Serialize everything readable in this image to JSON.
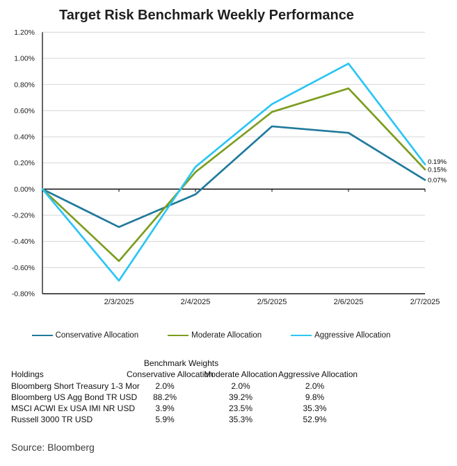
{
  "title": "Target Risk Benchmark Weekly Performance",
  "source": "Source: Bloomberg",
  "chart_data": {
    "type": "line",
    "x_labels": [
      "",
      "2/3/2025",
      "2/4/2025",
      "2/5/2025",
      "2/6/2025",
      "2/7/2025"
    ],
    "series": [
      {
        "name": "Conservative Allocation",
        "color": "#1F7A9B",
        "values": [
          0.0,
          -0.29,
          -0.04,
          0.48,
          0.43,
          0.07
        ],
        "end_label": "0.07%"
      },
      {
        "name": "Moderate Allocation",
        "color": "#7C9D1E",
        "values": [
          0.0,
          -0.55,
          0.13,
          0.59,
          0.77,
          0.15
        ],
        "end_label": "0.15%"
      },
      {
        "name": "Aggressive Allocation",
        "color": "#2BC5F4",
        "values": [
          0.0,
          -0.7,
          0.17,
          0.65,
          0.96,
          0.19
        ],
        "end_label": "0.19%"
      }
    ],
    "ylabel_unit": "%",
    "ylim": [
      -0.8,
      1.2
    ],
    "ytick_step": 0.2,
    "ytick_labels": [
      "1.20%",
      "1.00%",
      "0.80%",
      "0.60%",
      "0.40%",
      "0.20%",
      "0.00%",
      "-0.20%",
      "-0.40%",
      "-0.60%",
      "-0.80%"
    ],
    "grid": true,
    "legend_position": "bottom"
  },
  "table": {
    "caption": "Benchmark Weights",
    "columns": [
      "Holdings",
      "Conservative Allocation",
      "Moderate Allocation",
      "Aggressive Allocation"
    ],
    "rows": [
      [
        "Bloomberg Short Treasury 1-3 Mor",
        "2.0%",
        "2.0%",
        "2.0%"
      ],
      [
        "Bloomberg US Agg Bond TR USD",
        "88.2%",
        "39.2%",
        "9.8%"
      ],
      [
        "MSCI ACWI Ex USA IMI NR USD",
        "3.9%",
        "23.5%",
        "35.3%"
      ],
      [
        "Russell 3000 TR USD",
        "5.9%",
        "35.3%",
        "52.9%"
      ]
    ]
  }
}
